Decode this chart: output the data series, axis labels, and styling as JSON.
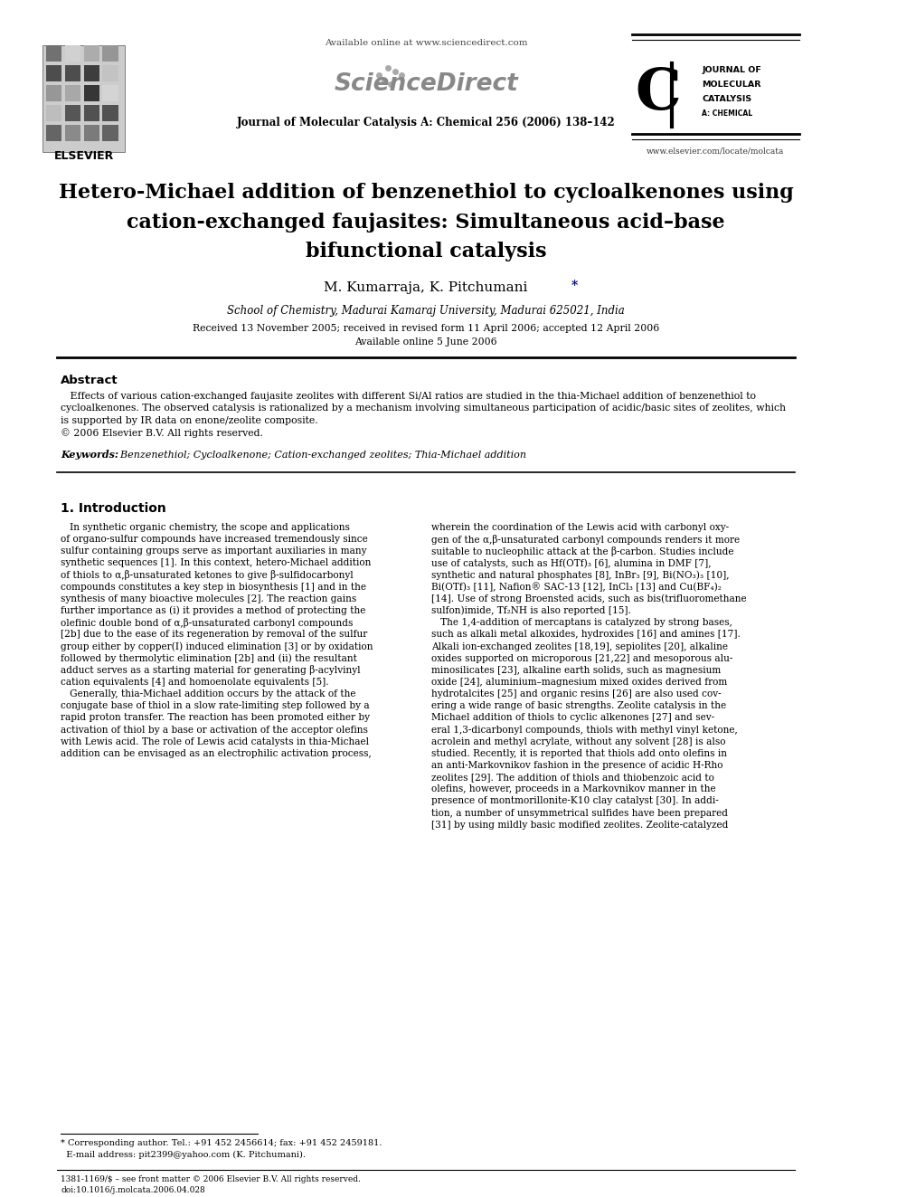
{
  "bg_color": "#ffffff",
  "title_line1": "Hetero-Michael addition of benzenethiol to cycloalkenones using",
  "title_line2": "cation-exchanged faujasites: Simultaneous acid–base",
  "title_line3": "bifunctional catalysis",
  "authors_main": "M. Kumarraja, K. Pitchumani",
  "authors_star": "*",
  "affiliation": "School of Chemistry, Madurai Kamaraj University, Madurai 625021, India",
  "received_line1": "Received 13 November 2005; received in revised form 11 April 2006; accepted 12 April 2006",
  "received_line2": "Available online 5 June 2006",
  "journal_header": "Journal of Molecular Catalysis A: Chemical 256 (2006) 138–142",
  "available_online": "Available online at www.sciencedirect.com",
  "www_elsevier": "www.elsevier.com/locate/molcata",
  "elsevier_text": "ELSEVIER",
  "abstract_title": "Abstract",
  "keywords_label": "Keywords:",
  "keywords_text": "  Benzenethiol; Cycloalkenone; Cation-exchanged zeolites; Thia-Michael addition",
  "intro_title": "1. Introduction",
  "left_col": [
    "   In synthetic organic chemistry, the scope and applications",
    "of organo-sulfur compounds have increased tremendously since",
    "sulfur containing groups serve as important auxiliaries in many",
    "synthetic sequences [1]. In this context, hetero-Michael addition",
    "of thiols to α,β-unsaturated ketones to give β-sulfidocarbonyl",
    "compounds constitutes a key step in biosynthesis [1] and in the",
    "synthesis of many bioactive molecules [2]. The reaction gains",
    "further importance as (i) it provides a method of protecting the",
    "olefinic double bond of α,β-unsaturated carbonyl compounds",
    "[2b] due to the ease of its regeneration by removal of the sulfur",
    "group either by copper(I) induced elimination [3] or by oxidation",
    "followed by thermolytic elimination [2b] and (ii) the resultant",
    "adduct serves as a starting material for generating β-acylvinyl",
    "cation equivalents [4] and homoenolate equivalents [5].",
    "   Generally, thia-Michael addition occurs by the attack of the",
    "conjugate base of thiol in a slow rate-limiting step followed by a",
    "rapid proton transfer. The reaction has been promoted either by",
    "activation of thiol by a base or activation of the acceptor olefins",
    "with Lewis acid. The role of Lewis acid catalysts in thia-Michael",
    "addition can be envisaged as an electrophilic activation process,"
  ],
  "right_col": [
    "wherein the coordination of the Lewis acid with carbonyl oxy-",
    "gen of the α,β-unsaturated carbonyl compounds renders it more",
    "suitable to nucleophilic attack at the β-carbon. Studies include",
    "use of catalysts, such as Hf(OTf)₃ [6], alumina in DMF [7],",
    "synthetic and natural phosphates [8], InBr₃ [9], Bi(NO₃)₃ [10],",
    "Bi(OTf)₃ [11], Nafion® SAC-13 [12], InCl₃ [13] and Cu(BF₄)₂",
    "[14]. Use of strong Broensted acids, such as bis(trifluoromethane",
    "sulfon)imide, Tf₂NH is also reported [15].",
    "   The 1,4-addition of mercaptans is catalyzed by strong bases,",
    "such as alkali metal alkoxides, hydroxides [16] and amines [17].",
    "Alkali ion-exchanged zeolites [18,19], sepiolites [20], alkaline",
    "oxides supported on microporous [21,22] and mesoporous alu-",
    "minosilicates [23], alkaline earth solids, such as magnesium",
    "oxide [24], aluminium–magnesium mixed oxides derived from",
    "hydrotalcites [25] and organic resins [26] are also used cov-",
    "ering a wide range of basic strengths. Zeolite catalysis in the",
    "Michael addition of thiols to cyclic alkenones [27] and sev-",
    "eral 1,3-dicarbonyl compounds, thiols with methyl vinyl ketone,",
    "acrolein and methyl acrylate, without any solvent [28] is also",
    "studied. Recently, it is reported that thiols add onto olefins in",
    "an anti-Markovnikov fashion in the presence of acidic H-Rho",
    "zeolites [29]. The addition of thiols and thiobenzoic acid to",
    "olefins, however, proceeds in a Markovnikov manner in the",
    "presence of montmorillonite-K10 clay catalyst [30]. In addi-",
    "tion, a number of unsymmetrical sulfides have been prepared",
    "[31] by using mildly basic modified zeolites. Zeolite-catalyzed"
  ],
  "abstract_lines": [
    "   Effects of various cation-exchanged faujasite zeolites with different Si/Al ratios are studied in the thia-Michael addition of benzenethiol to",
    "cycloalkenones. The observed catalysis is rationalized by a mechanism involving simultaneous participation of acidic/basic sites of zeolites, which",
    "is supported by IR data on enone/zeolite composite.",
    "© 2006 Elsevier B.V. All rights reserved."
  ],
  "footnote1": "* Corresponding author. Tel.: +91 452 2456614; fax: +91 452 2459181.",
  "footnote2": "  E-mail address: pit2399@yahoo.com (K. Pitchumani).",
  "footnote3": "1381-1169/$ – see front matter © 2006 Elsevier B.V. All rights reserved.",
  "footnote4": "doi:10.1016/j.molcata.2006.04.028"
}
